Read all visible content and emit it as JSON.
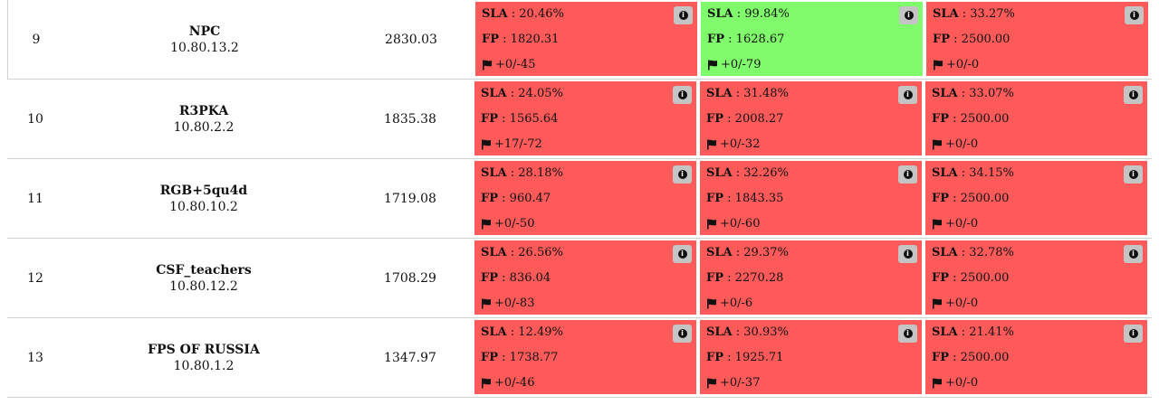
{
  "labels": {
    "sla": "SLA",
    "fp": "FP"
  },
  "icons": {
    "info": "info-icon",
    "flag": "flag-icon"
  },
  "colors": {
    "down": "#fe5a5a",
    "up": "#80fb6b",
    "info_bg": "#c4c4c4"
  },
  "rows": [
    {
      "place": "9",
      "team": "NPC",
      "ip": "10.80.13.2",
      "score": "2830.03",
      "services": [
        {
          "status": "down",
          "sla": "20.46%",
          "fp": "1820.31",
          "flags": "+0/-45"
        },
        {
          "status": "up",
          "sla": "99.84%",
          "fp": "1628.67",
          "flags": "+0/-79"
        },
        {
          "status": "down",
          "sla": "33.27%",
          "fp": "2500.00",
          "flags": "+0/-0"
        }
      ]
    },
    {
      "place": "10",
      "team": "R3PKA",
      "ip": "10.80.2.2",
      "score": "1835.38",
      "services": [
        {
          "status": "down",
          "sla": "24.05%",
          "fp": "1565.64",
          "flags": "+17/-72"
        },
        {
          "status": "down",
          "sla": "31.48%",
          "fp": "2008.27",
          "flags": "+0/-32"
        },
        {
          "status": "down",
          "sla": "33.07%",
          "fp": "2500.00",
          "flags": "+0/-0"
        }
      ]
    },
    {
      "place": "11",
      "team": "RGB+5qu4d",
      "ip": "10.80.10.2",
      "score": "1719.08",
      "services": [
        {
          "status": "down",
          "sla": "28.18%",
          "fp": "960.47",
          "flags": "+0/-50"
        },
        {
          "status": "down",
          "sla": "32.26%",
          "fp": "1843.35",
          "flags": "+0/-60"
        },
        {
          "status": "down",
          "sla": "34.15%",
          "fp": "2500.00",
          "flags": "+0/-0"
        }
      ]
    },
    {
      "place": "12",
      "team": "CSF_teachers",
      "ip": "10.80.12.2",
      "score": "1708.29",
      "services": [
        {
          "status": "down",
          "sla": "26.56%",
          "fp": "836.04",
          "flags": "+0/-83"
        },
        {
          "status": "down",
          "sla": "29.37%",
          "fp": "2270.28",
          "flags": "+0/-6"
        },
        {
          "status": "down",
          "sla": "32.78%",
          "fp": "2500.00",
          "flags": "+0/-0"
        }
      ]
    },
    {
      "place": "13",
      "team": "FPS OF RUSSIA",
      "ip": "10.80.1.2",
      "score": "1347.97",
      "services": [
        {
          "status": "down",
          "sla": "12.49%",
          "fp": "1738.77",
          "flags": "+0/-46"
        },
        {
          "status": "down",
          "sla": "30.93%",
          "fp": "1925.71",
          "flags": "+0/-37"
        },
        {
          "status": "down",
          "sla": "21.41%",
          "fp": "2500.00",
          "flags": "+0/-0"
        }
      ]
    }
  ]
}
